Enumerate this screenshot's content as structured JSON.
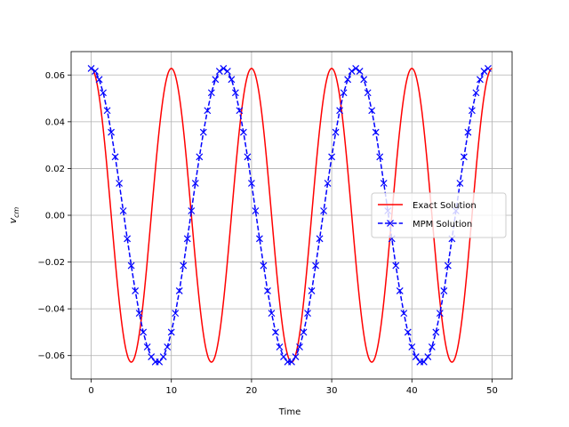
{
  "chart_data": {
    "type": "line",
    "xlabel": "Time",
    "ylabel": "v",
    "ylabel_sub": "cm",
    "xlim": [
      -2.5,
      52.5
    ],
    "ylim": [
      -0.07,
      0.07
    ],
    "xticks": [
      0,
      10,
      20,
      30,
      40,
      50
    ],
    "yticks": [
      -0.06,
      -0.04,
      -0.02,
      0.0,
      0.02,
      0.04,
      0.06
    ],
    "xtick_labels": [
      "0",
      "10",
      "20",
      "30",
      "40",
      "50"
    ],
    "ytick_labels": [
      "−0.06",
      "−0.04",
      "−0.02",
      "0.00",
      "0.02",
      "0.04",
      "0.06"
    ],
    "grid": true,
    "legend_position": "center-right",
    "series": [
      {
        "name": "Exact Solution",
        "style": "solid",
        "color": "#ff0000",
        "function": "0.0628*cos(2*pi*t/10)",
        "x_range": [
          0,
          50
        ]
      },
      {
        "name": "MPM Solution",
        "style": "dashed",
        "marker": "x",
        "color": "#0000ff",
        "x": [
          0,
          0.5,
          1,
          1.5,
          2,
          2.5,
          3,
          3.5,
          4,
          4.5,
          5,
          5.5,
          6,
          6.5,
          7,
          7.5,
          8,
          8.5,
          9,
          9.5,
          10,
          10.5,
          11,
          11.5,
          12,
          12.5,
          13,
          13.5,
          14,
          14.5,
          15,
          15.5,
          16,
          16.5,
          17,
          17.5,
          18,
          18.5,
          19,
          19.5,
          20,
          20.5,
          21,
          21.5,
          22,
          22.5,
          23,
          23.5,
          24,
          24.5,
          25,
          25.5,
          26,
          26.5,
          27,
          27.5,
          28,
          28.5,
          29,
          29.5,
          30,
          30.5,
          31,
          31.5,
          32,
          32.5,
          33,
          33.5,
          34,
          34.5,
          35,
          35.5,
          36,
          36.5,
          37,
          37.5,
          38,
          38.5,
          39,
          39.5,
          40,
          40.5,
          41,
          41.5,
          42,
          42.5,
          43,
          43.5,
          44,
          44.5,
          45,
          45.5,
          46,
          46.5,
          47,
          47.5,
          48,
          48.5,
          49,
          49.5
        ],
        "y": [
          0.0628,
          0.0616,
          0.0581,
          0.0524,
          0.0448,
          0.0355,
          0.025,
          0.0137,
          0.0019,
          -0.01,
          -0.0215,
          -0.0323,
          -0.0419,
          -0.05,
          -0.0563,
          -0.0605,
          -0.0627,
          -0.0627,
          -0.0605,
          -0.0563,
          -0.05,
          -0.0419,
          -0.0323,
          -0.0215,
          -0.01,
          0.0019,
          0.0137,
          0.025,
          0.0355,
          0.0448,
          0.0524,
          0.0581,
          0.0616,
          0.0628,
          0.0616,
          0.0581,
          0.0524,
          0.0448,
          0.0355,
          0.025,
          0.0137,
          0.0019,
          -0.01,
          -0.0215,
          -0.0323,
          -0.0419,
          -0.05,
          -0.0563,
          -0.0605,
          -0.0627,
          -0.0627,
          -0.0605,
          -0.0563,
          -0.05,
          -0.0419,
          -0.0323,
          -0.0215,
          -0.01,
          0.0019,
          0.0137,
          0.025,
          0.0355,
          0.0448,
          0.0524,
          0.0581,
          0.0616,
          0.0628,
          0.0616,
          0.0581,
          0.0524,
          0.0448,
          0.0355,
          0.025,
          0.0137,
          0.0019,
          -0.01,
          -0.0215,
          -0.0323,
          -0.0419,
          -0.05,
          -0.0563,
          -0.0605,
          -0.0627,
          -0.0627,
          -0.0605,
          -0.0563,
          -0.05,
          -0.0419,
          -0.0323,
          -0.0215,
          -0.01,
          0.0019,
          0.0137,
          0.025,
          0.0355,
          0.0448,
          0.0524,
          0.0581,
          0.0616,
          0.0628
        ]
      }
    ]
  }
}
